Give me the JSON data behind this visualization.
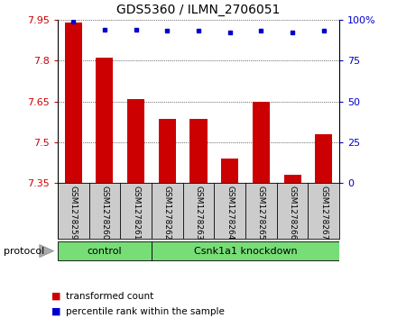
{
  "title": "GDS5360 / ILMN_2706051",
  "samples": [
    "GSM1278259",
    "GSM1278260",
    "GSM1278261",
    "GSM1278262",
    "GSM1278263",
    "GSM1278264",
    "GSM1278265",
    "GSM1278266",
    "GSM1278267"
  ],
  "transformed_counts": [
    7.94,
    7.81,
    7.66,
    7.585,
    7.585,
    7.44,
    7.65,
    7.38,
    7.53
  ],
  "percentile_ranks": [
    99,
    94,
    94,
    93,
    93,
    92,
    93,
    92,
    93
  ],
  "ylim_left": [
    7.35,
    7.95
  ],
  "ylim_right": [
    0,
    100
  ],
  "yticks_left": [
    7.35,
    7.5,
    7.65,
    7.8,
    7.95
  ],
  "ytick_labels_left": [
    "7.35",
    "7.5",
    "7.65",
    "7.8",
    "7.95"
  ],
  "yticks_right": [
    0,
    25,
    50,
    75,
    100
  ],
  "ytick_labels_right": [
    "0",
    "25",
    "50",
    "75",
    "100%"
  ],
  "bar_color": "#cc0000",
  "dot_color": "#0000cc",
  "bar_width": 0.55,
  "protocol_groups": [
    {
      "label": "control",
      "indices": [
        0,
        1,
        2
      ],
      "color": "#77dd77"
    },
    {
      "label": "Csnk1a1 knockdown",
      "indices": [
        3,
        4,
        5,
        6,
        7,
        8
      ],
      "color": "#77dd77"
    }
  ],
  "protocol_label": "protocol",
  "legend_items": [
    {
      "label": "transformed count",
      "color": "#cc0000"
    },
    {
      "label": "percentile rank within the sample",
      "color": "#0000cc"
    }
  ],
  "bg_color": "#cccccc",
  "title_fontsize": 10,
  "tick_fontsize": 8,
  "sample_fontsize": 6.5
}
